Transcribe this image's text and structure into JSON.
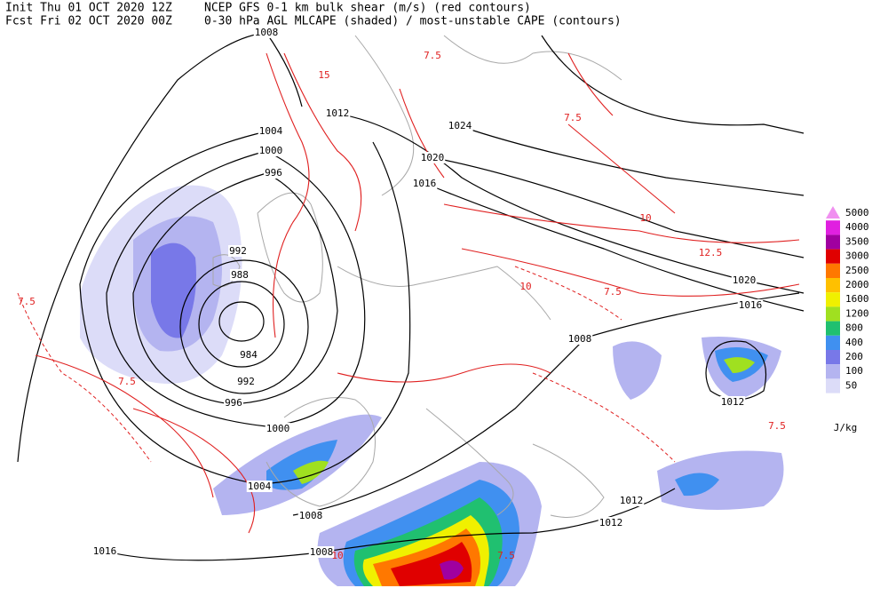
{
  "header": {
    "init": "Init  Thu 01 OCT 2020 12Z",
    "forecast": "Fcst Fri 02 OCT 2020 00Z",
    "product_line1": "NCEP GFS 0-1 km bulk shear (m/s) (red contours)",
    "product_line2": "0-30 hPa AGL MLCAPE (shaded) / most-unstable CAPE (contours)"
  },
  "legend": {
    "levels": [
      {
        "label": "5000",
        "color": "#f090f0"
      },
      {
        "label": "4000",
        "color": "#e020e0"
      },
      {
        "label": "3500",
        "color": "#a000a0"
      },
      {
        "label": "3000",
        "color": "#e00000"
      },
      {
        "label": "2500",
        "color": "#ff7800"
      },
      {
        "label": "2000",
        "color": "#ffc000"
      },
      {
        "label": "1600",
        "color": "#f0f000"
      },
      {
        "label": "1200",
        "color": "#a0e020"
      },
      {
        "label": "800",
        "color": "#20c070"
      },
      {
        "label": "400",
        "color": "#4090f0"
      },
      {
        "label": "200",
        "color": "#7878e8"
      },
      {
        "label": "100",
        "color": "#b4b4f0"
      },
      {
        "label": "50",
        "color": "#dcdcf8"
      }
    ],
    "unit": "J/kg"
  },
  "isobar_labels": [
    1008,
    1012,
    1004,
    1000,
    996,
    1024,
    1020,
    1016,
    992,
    988,
    984,
    992,
    996,
    1000,
    1004,
    1008,
    1016,
    1008,
    1012,
    1012,
    1012,
    1008,
    1020,
    1016
  ],
  "shear_labels": [
    "7.5",
    "15",
    "7.5",
    "10",
    "12.5",
    "7.5",
    "7.5",
    "7.5",
    "10",
    "7.5",
    "10",
    "7.5"
  ]
}
